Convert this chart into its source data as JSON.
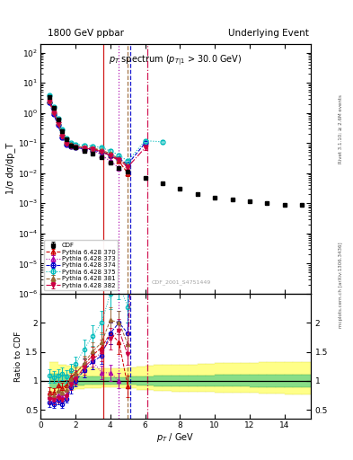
{
  "title_left": "1800 GeV ppbar",
  "title_right": "Underlying Event",
  "main_title": "$p_T$ spectrum ($p_{T|1}$ > 30.0 GeV)",
  "ylabel_main": "1/σ dσ/dp_T",
  "ylabel_ratio": "Ratio to CDF",
  "xlabel": "$p_T$ / GeV",
  "right_label_top": "Rivet 3.1.10; ≥ 2.6M events",
  "right_label_bot": "mcplots.cern.ch [arXiv:1306.3436]",
  "watermark": "CDF_2001_S4751449",
  "cdf_x": [
    0.5,
    0.75,
    1.0,
    1.25,
    1.5,
    1.75,
    2.0,
    2.5,
    3.0,
    3.5,
    4.0,
    4.5,
    5.0,
    6.0,
    7.0,
    8.0,
    9.0,
    10.0,
    11.0,
    12.0,
    13.0,
    14.0,
    15.0
  ],
  "cdf_y": [
    3.5,
    1.5,
    0.6,
    0.25,
    0.13,
    0.085,
    0.07,
    0.055,
    0.045,
    0.035,
    0.022,
    0.015,
    0.011,
    0.007,
    0.0045,
    0.003,
    0.002,
    0.0015,
    0.0013,
    0.0012,
    0.001,
    0.0009,
    0.0009
  ],
  "cdf_yerr": [
    0.3,
    0.12,
    0.05,
    0.02,
    0.01,
    0.007,
    0.006,
    0.005,
    0.004,
    0.003,
    0.002,
    0.001,
    0.001,
    0.0006,
    0.0004,
    0.0003,
    0.0002,
    0.00015,
    0.00013,
    0.00012,
    0.0001,
    9e-05,
    9e-05
  ],
  "series": [
    {
      "label": "Pythia 6.428 370",
      "color": "#cc0000",
      "marker": "^",
      "ls": "--",
      "filled": false,
      "x": [
        0.5,
        0.75,
        1.0,
        1.25,
        1.5,
        1.75,
        2.0,
        2.5,
        3.0,
        3.5,
        4.0,
        4.5,
        5.0
      ],
      "y": [
        2.8,
        1.2,
        0.55,
        0.22,
        0.12,
        0.09,
        0.08,
        0.07,
        0.065,
        0.055,
        0.04,
        0.025,
        0.01
      ],
      "yerr": [
        0.3,
        0.12,
        0.05,
        0.02,
        0.012,
        0.009,
        0.008,
        0.007,
        0.006,
        0.005,
        0.004,
        0.003,
        0.002
      ]
    },
    {
      "label": "Pythia 6.428 373",
      "color": "#aa00aa",
      "marker": "^",
      "ls": ":",
      "filled": false,
      "x": [
        0.5,
        0.75,
        1.0,
        1.25,
        1.5,
        1.75,
        2.0,
        2.5,
        3.0,
        3.5,
        4.0,
        4.5
      ],
      "y": [
        2.5,
        1.0,
        0.45,
        0.18,
        0.1,
        0.085,
        0.075,
        0.065,
        0.06,
        0.04,
        0.025,
        0.015
      ],
      "yerr": [
        0.3,
        0.1,
        0.045,
        0.018,
        0.01,
        0.009,
        0.008,
        0.007,
        0.006,
        0.004,
        0.003,
        0.002
      ]
    },
    {
      "label": "Pythia 6.428 374",
      "color": "#0000cc",
      "marker": "o",
      "ls": "--",
      "filled": false,
      "x": [
        0.5,
        0.75,
        1.0,
        1.25,
        1.5,
        1.75,
        2.0,
        2.5,
        3.0,
        3.5,
        4.0,
        4.5,
        5.0,
        6.0
      ],
      "y": [
        2.2,
        0.9,
        0.4,
        0.15,
        0.09,
        0.075,
        0.07,
        0.065,
        0.06,
        0.05,
        0.04,
        0.03,
        0.02,
        0.1
      ],
      "yerr": [
        0.25,
        0.09,
        0.04,
        0.015,
        0.009,
        0.008,
        0.007,
        0.007,
        0.006,
        0.005,
        0.004,
        0.003,
        0.002,
        0.015
      ]
    },
    {
      "label": "Pythia 6.428 375",
      "color": "#00bbbb",
      "marker": "o",
      "ls": ":",
      "filled": false,
      "x": [
        0.5,
        0.75,
        1.0,
        1.25,
        1.5,
        1.75,
        2.0,
        2.5,
        3.0,
        3.5,
        4.0,
        4.5,
        5.0,
        6.0,
        7.0
      ],
      "y": [
        3.8,
        1.6,
        0.65,
        0.28,
        0.14,
        0.1,
        0.09,
        0.085,
        0.08,
        0.07,
        0.055,
        0.04,
        0.025,
        0.12,
        0.11
      ],
      "yerr": [
        0.4,
        0.16,
        0.065,
        0.028,
        0.014,
        0.01,
        0.009,
        0.009,
        0.008,
        0.007,
        0.006,
        0.004,
        0.003,
        0.015,
        0.014
      ]
    },
    {
      "label": "Pythia 6.428 381",
      "color": "#996633",
      "marker": "^",
      "ls": "--",
      "filled": true,
      "x": [
        0.5,
        0.75,
        1.0,
        1.25,
        1.5,
        1.75,
        2.0,
        2.5,
        3.0,
        3.5,
        4.0,
        4.5,
        5.0
      ],
      "y": [
        2.6,
        1.1,
        0.5,
        0.2,
        0.11,
        0.088,
        0.078,
        0.072,
        0.068,
        0.058,
        0.045,
        0.03,
        0.018
      ],
      "yerr": [
        0.28,
        0.11,
        0.05,
        0.02,
        0.011,
        0.009,
        0.008,
        0.007,
        0.007,
        0.006,
        0.005,
        0.003,
        0.002
      ]
    },
    {
      "label": "Pythia 6.428 382",
      "color": "#cc0044",
      "marker": "v",
      "ls": "-.",
      "filled": true,
      "x": [
        0.5,
        0.75,
        1.0,
        1.25,
        1.5,
        1.75,
        2.0,
        2.5,
        3.0,
        3.5,
        4.0,
        4.5,
        5.0,
        6.0
      ],
      "y": [
        2.4,
        1.0,
        0.42,
        0.17,
        0.095,
        0.08,
        0.072,
        0.068,
        0.062,
        0.052,
        0.038,
        0.028,
        0.016,
        0.07
      ],
      "yerr": [
        0.25,
        0.1,
        0.042,
        0.017,
        0.01,
        0.008,
        0.007,
        0.007,
        0.006,
        0.005,
        0.004,
        0.003,
        0.002,
        0.01
      ]
    }
  ],
  "vlines": [
    {
      "x": 3.5,
      "color": "#cc0000",
      "ls": "-"
    },
    {
      "x": 4.5,
      "color": "#aa00aa",
      "ls": ":"
    },
    {
      "x": 5.2,
      "color": "#0000cc",
      "ls": "--"
    },
    {
      "x": 5.0,
      "color": "#996633",
      "ls": "--"
    },
    {
      "x": 6.2,
      "color": "#cc0044",
      "ls": "-."
    }
  ],
  "ratio_bins": [
    0.5,
    1.0,
    1.5,
    2.0,
    2.5,
    3.0,
    3.5,
    4.0,
    4.5,
    5.0,
    5.5,
    6.0,
    6.5,
    7.0,
    7.5,
    8.0,
    8.5,
    9.0,
    9.5,
    10.0,
    10.5,
    11.0,
    11.5,
    12.0,
    12.5,
    13.0,
    13.5,
    14.0,
    14.5,
    15.0,
    16.0
  ],
  "ratio_green_lo": [
    0.88,
    0.9,
    0.91,
    0.92,
    0.93,
    0.93,
    0.94,
    0.94,
    0.94,
    0.93,
    0.92,
    0.92,
    0.91,
    0.91,
    0.91,
    0.91,
    0.91,
    0.91,
    0.91,
    0.9,
    0.9,
    0.9,
    0.9,
    0.89,
    0.89,
    0.89,
    0.89,
    0.89,
    0.89,
    0.89
  ],
  "ratio_green_hi": [
    1.12,
    1.1,
    1.09,
    1.08,
    1.07,
    1.07,
    1.06,
    1.06,
    1.06,
    1.07,
    1.08,
    1.08,
    1.09,
    1.09,
    1.09,
    1.09,
    1.09,
    1.09,
    1.09,
    1.1,
    1.1,
    1.1,
    1.1,
    1.11,
    1.11,
    1.11,
    1.11,
    1.11,
    1.11,
    1.11
  ],
  "ratio_yellow_lo": [
    0.78,
    0.82,
    0.84,
    0.86,
    0.87,
    0.88,
    0.89,
    0.89,
    0.88,
    0.87,
    0.85,
    0.84,
    0.83,
    0.83,
    0.82,
    0.82,
    0.82,
    0.81,
    0.81,
    0.8,
    0.8,
    0.8,
    0.79,
    0.79,
    0.78,
    0.78,
    0.78,
    0.77,
    0.77,
    0.77
  ],
  "ratio_yellow_hi": [
    1.32,
    1.28,
    1.26,
    1.24,
    1.23,
    1.22,
    1.21,
    1.21,
    1.22,
    1.23,
    1.25,
    1.26,
    1.27,
    1.27,
    1.28,
    1.28,
    1.28,
    1.29,
    1.29,
    1.3,
    1.3,
    1.3,
    1.31,
    1.31,
    1.32,
    1.32,
    1.32,
    1.33,
    1.33,
    1.33
  ],
  "bg_color": "#ffffff",
  "xlim": [
    0,
    15.5
  ],
  "ylim_main": [
    1e-06,
    200
  ],
  "ylim_ratio": [
    0.35,
    2.5
  ]
}
